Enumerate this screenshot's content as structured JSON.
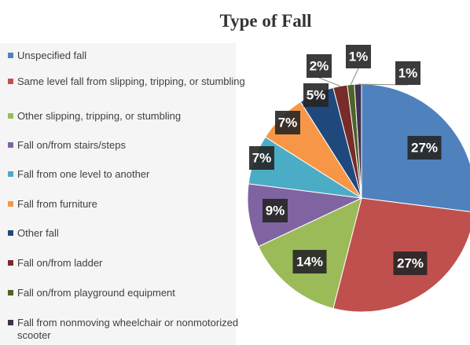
{
  "chart_data": {
    "type": "pie",
    "title": "Type of Fall",
    "categories": [
      "Unspecified fall",
      "Same level fall from slipping, tripping, or stumbling",
      "Other slipping, tripping, or stumbling",
      "Fall on/from stairs/steps",
      "Fall from one level to another",
      "Fall from furniture",
      "Other fall",
      "Fall on/from ladder",
      "Fall on/from playground equipment",
      "Fall from nonmoving wheelchair or nonmotorized scooter"
    ],
    "values": [
      27,
      27,
      14,
      9,
      7,
      7,
      5,
      2,
      1,
      1
    ],
    "value_labels": [
      "27%",
      "27%",
      "14%",
      "9%",
      "7%",
      "7%",
      "5%",
      "2%",
      "1%",
      "1%"
    ],
    "colors": [
      "#4f81bd",
      "#c0504d",
      "#9bbb59",
      "#8064a2",
      "#4bacc6",
      "#f79646",
      "#1f497d",
      "#772c2a",
      "#4f6228",
      "#3f3151"
    ],
    "legend": "left"
  }
}
